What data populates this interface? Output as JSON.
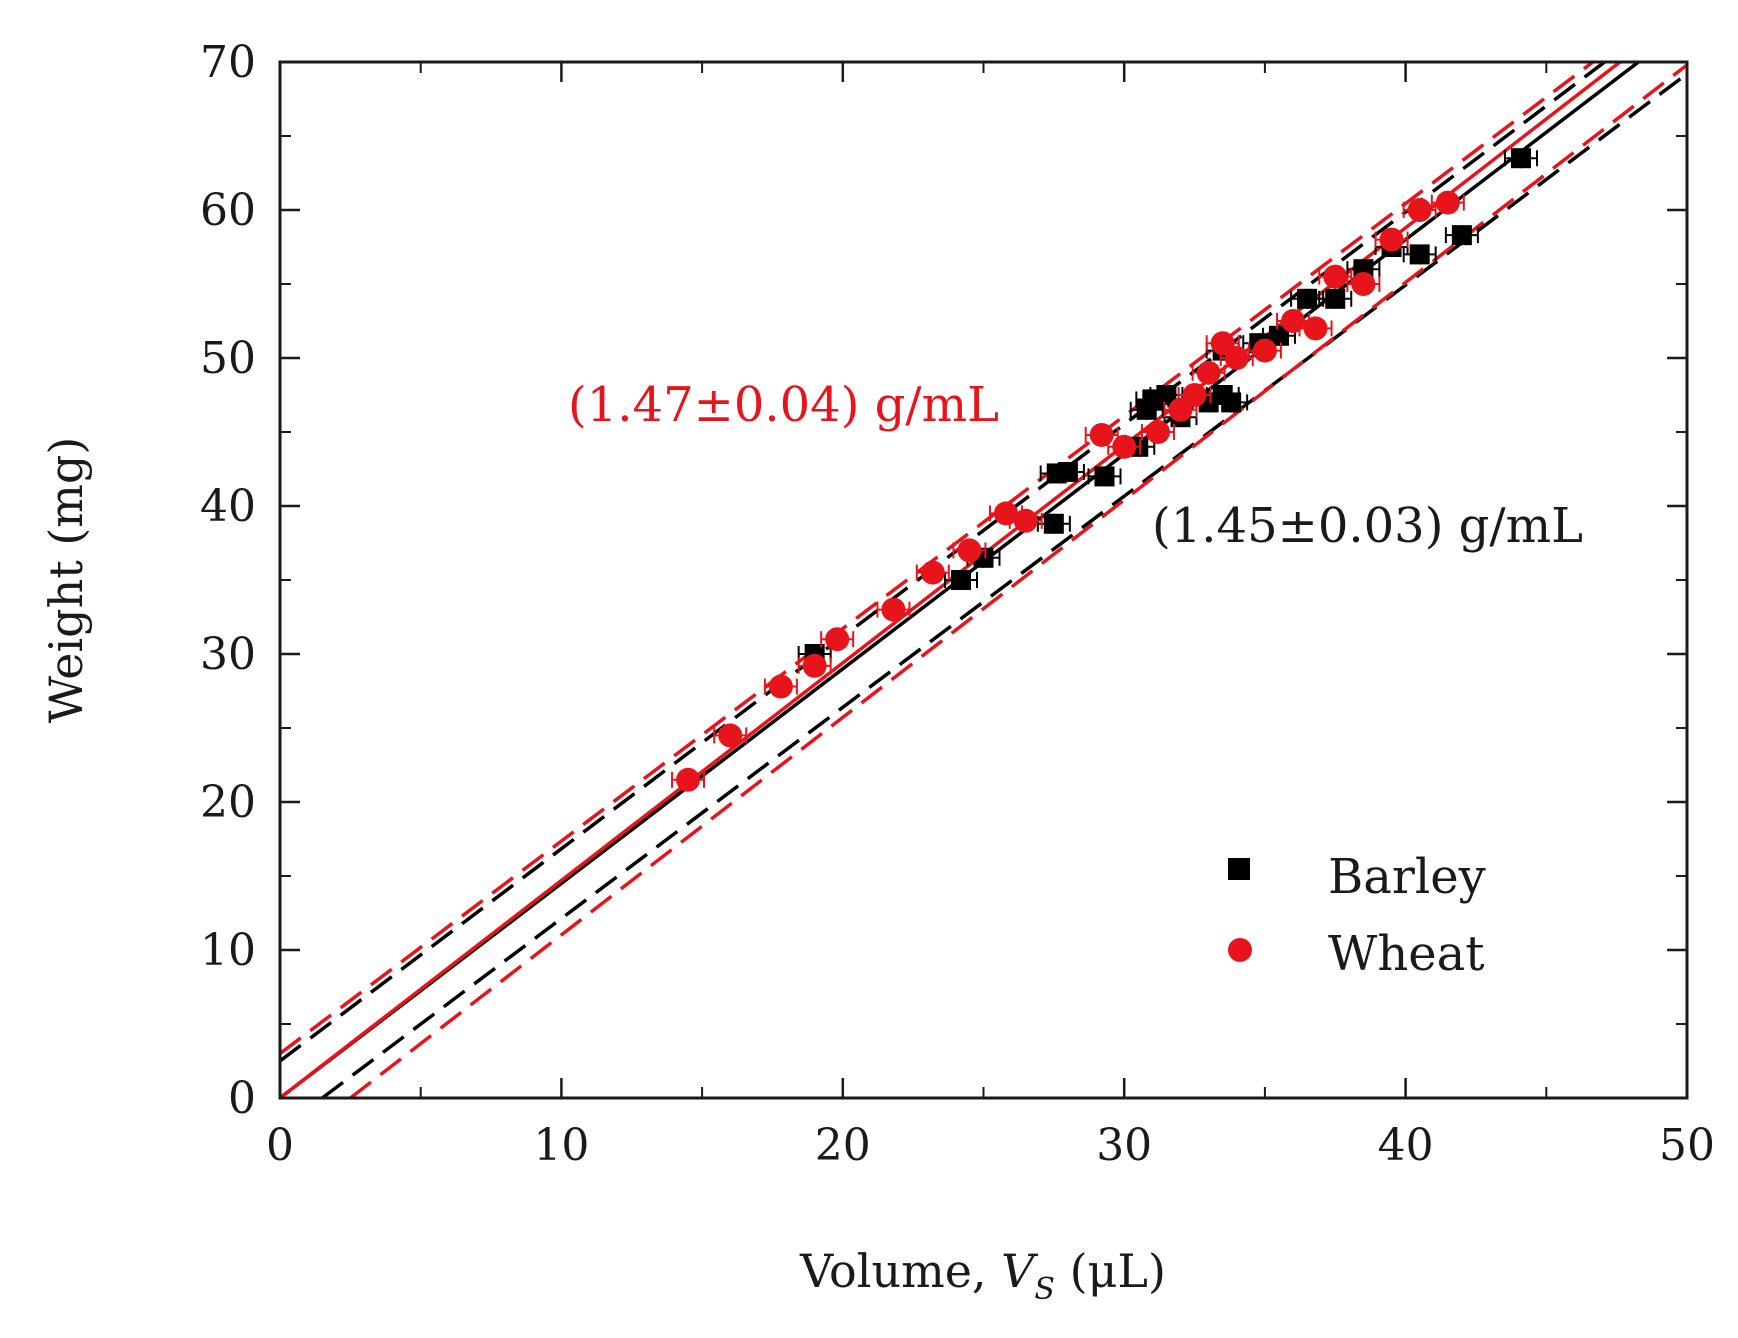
{
  "chart_data": {
    "type": "scatter",
    "title": "",
    "xlabel": "Volume, ",
    "xlabel_var": "V",
    "xlabel_sub": "S",
    "xlabel_unit": " (μL)",
    "ylabel": "Weight (mg)",
    "xlim": [
      0,
      50
    ],
    "ylim": [
      0,
      70
    ],
    "xticks": [
      0,
      10,
      20,
      30,
      40,
      50
    ],
    "yticks": [
      0,
      10,
      20,
      30,
      40,
      50,
      60,
      70
    ],
    "grid": false,
    "legend_position": "bottom-right",
    "colors": {
      "barley": "#000000",
      "wheat": "#e8141b",
      "axis": "#1a1a1a"
    },
    "series": [
      {
        "name": "Barley",
        "marker": "square",
        "color": "#000000",
        "points": [
          {
            "x": 19.0,
            "y": 30.0
          },
          {
            "x": 24.2,
            "y": 35.0
          },
          {
            "x": 25.0,
            "y": 36.5
          },
          {
            "x": 27.5,
            "y": 38.8
          },
          {
            "x": 27.6,
            "y": 42.2
          },
          {
            "x": 28.0,
            "y": 42.3
          },
          {
            "x": 29.3,
            "y": 42.0
          },
          {
            "x": 30.5,
            "y": 44.0
          },
          {
            "x": 30.8,
            "y": 46.5
          },
          {
            "x": 31.0,
            "y": 47.2
          },
          {
            "x": 31.5,
            "y": 47.5
          },
          {
            "x": 32.0,
            "y": 46.0
          },
          {
            "x": 33.0,
            "y": 47.0
          },
          {
            "x": 33.5,
            "y": 47.5
          },
          {
            "x": 33.8,
            "y": 47.0
          },
          {
            "x": 33.5,
            "y": 50.5
          },
          {
            "x": 34.8,
            "y": 51.0
          },
          {
            "x": 35.5,
            "y": 51.5
          },
          {
            "x": 36.5,
            "y": 54.0
          },
          {
            "x": 37.5,
            "y": 54.0
          },
          {
            "x": 38.5,
            "y": 56.0
          },
          {
            "x": 39.5,
            "y": 57.5
          },
          {
            "x": 40.5,
            "y": 57.0
          },
          {
            "x": 42.0,
            "y": 58.3
          },
          {
            "x": 44.1,
            "y": 63.5
          }
        ]
      },
      {
        "name": "Wheat",
        "marker": "circle",
        "color": "#e8141b",
        "points": [
          {
            "x": 14.5,
            "y": 21.5
          },
          {
            "x": 16.0,
            "y": 24.5
          },
          {
            "x": 17.8,
            "y": 27.8
          },
          {
            "x": 19.0,
            "y": 29.2
          },
          {
            "x": 19.8,
            "y": 31.0
          },
          {
            "x": 21.8,
            "y": 33.0
          },
          {
            "x": 23.2,
            "y": 35.5
          },
          {
            "x": 24.5,
            "y": 37.0
          },
          {
            "x": 25.8,
            "y": 39.5
          },
          {
            "x": 26.5,
            "y": 39.0
          },
          {
            "x": 29.2,
            "y": 44.8
          },
          {
            "x": 30.0,
            "y": 44.0
          },
          {
            "x": 31.2,
            "y": 45.0
          },
          {
            "x": 32.0,
            "y": 46.5
          },
          {
            "x": 32.5,
            "y": 47.5
          },
          {
            "x": 33.0,
            "y": 49.0
          },
          {
            "x": 33.5,
            "y": 51.0
          },
          {
            "x": 34.0,
            "y": 50.0
          },
          {
            "x": 35.0,
            "y": 50.5
          },
          {
            "x": 36.0,
            "y": 52.5
          },
          {
            "x": 36.8,
            "y": 52.0
          },
          {
            "x": 37.5,
            "y": 55.5
          },
          {
            "x": 38.5,
            "y": 55.0
          },
          {
            "x": 39.5,
            "y": 58.0
          },
          {
            "x": 40.5,
            "y": 60.0
          },
          {
            "x": 41.5,
            "y": 60.5
          }
        ]
      }
    ],
    "fit_lines": [
      {
        "name": "Barley fit",
        "color": "#000000",
        "dash": false,
        "x": [
          0,
          50
        ],
        "y": [
          0,
          72.5
        ]
      },
      {
        "name": "Barley upper band",
        "color": "#000000",
        "dash": true,
        "x": [
          0,
          50
        ],
        "y": [
          2.5,
          74.2
        ]
      },
      {
        "name": "Barley lower band",
        "color": "#000000",
        "dash": true,
        "x": [
          1.5,
          50
        ],
        "y": [
          0,
          69.2
        ]
      },
      {
        "name": "Wheat fit",
        "color": "#e8141b",
        "dash": false,
        "x": [
          0,
          50
        ],
        "y": [
          0,
          73.5
        ]
      },
      {
        "name": "Wheat upper band",
        "color": "#e8141b",
        "dash": true,
        "x": [
          0,
          50
        ],
        "y": [
          3.0,
          74.8
        ]
      },
      {
        "name": "Wheat lower band",
        "color": "#e8141b",
        "dash": true,
        "x": [
          2.5,
          50
        ],
        "y": [
          0,
          69.8
        ]
      }
    ],
    "annotations": [
      {
        "text": "(1.47±0.04) g/mL",
        "color": "#e8141b",
        "x": 16.5,
        "y": 46.5
      },
      {
        "text": "(1.45±0.03) g/mL",
        "color": "#1a1a1a",
        "x": 31.0,
        "y": 38.5
      }
    ],
    "legend": [
      {
        "label": "Barley",
        "marker": "square",
        "color": "#000000"
      },
      {
        "label": "Wheat",
        "marker": "circle",
        "color": "#e8141b"
      }
    ]
  }
}
